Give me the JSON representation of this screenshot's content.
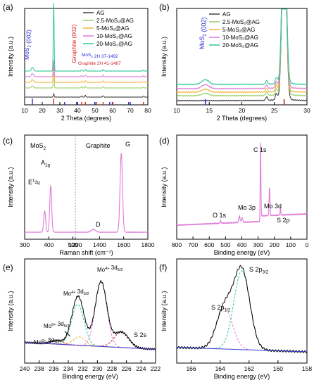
{
  "chart_data": [
    {
      "panel": "(a)",
      "type": "line",
      "xlabel": "2 Theta (degrees)",
      "ylabel": "Intensity (a.u.)",
      "xlim": [
        10,
        80
      ],
      "xticks": [
        10,
        20,
        30,
        40,
        50,
        60,
        70,
        80
      ],
      "series": [
        {
          "name": "AG",
          "color": "#404040"
        },
        {
          "name": "2.5-MoS₂@AG",
          "color": "#9ad06a"
        },
        {
          "name": "5-MoS₂@AG",
          "color": "#f2b53a"
        },
        {
          "name": "10-MoS₂@AG",
          "color": "#e07ad8"
        },
        {
          "name": "20-MoS₂@AG",
          "color": "#2ec99a"
        }
      ],
      "annotations": [
        {
          "text": "MoS₂ (002)",
          "color": "#2b2bd6"
        },
        {
          "text": "Graphite (002)",
          "color": "#d62020"
        },
        {
          "text": "MoS₂ 2H 37-1492",
          "color": "#2b2bd6"
        },
        {
          "text": "Graphite 2H 41-1487",
          "color": "#d62020"
        }
      ],
      "peaks_2theta": [
        14.4,
        26.5,
        42.4,
        44.5,
        54.6,
        77.5
      ],
      "reference_MoS2": [
        14.4,
        32.7,
        39.5,
        49.8,
        58.3,
        60.1,
        69.1
      ],
      "reference_graphite": [
        26.5,
        42.4,
        44.5,
        50.7,
        54.6,
        59.8,
        77.5
      ]
    },
    {
      "panel": "(b)",
      "type": "line",
      "xlabel": "2 Theta (degrees)",
      "ylabel": "Intensity (a.u.)",
      "xlim": [
        10,
        30
      ],
      "xticks": [
        10,
        15,
        20,
        25,
        30
      ],
      "series": [
        {
          "name": "AG",
          "color": "#404040"
        },
        {
          "name": "2.5-MoS₂@AG",
          "color": "#9ad06a"
        },
        {
          "name": "5-MoS₂@AG",
          "color": "#f2b53a"
        },
        {
          "name": "10-MoS₂@AG",
          "color": "#e07ad8"
        },
        {
          "name": "20-MoS₂@AG",
          "color": "#2ec99a"
        }
      ],
      "annotations": [
        {
          "text": "MoS₂ (002)",
          "color": "#2b2bd6"
        }
      ],
      "peaks_2theta": [
        14.4,
        23.8,
        25.3,
        26.5
      ]
    },
    {
      "panel": "(c)",
      "type": "line",
      "xlabel": "Raman shift (cm⁻¹)",
      "ylabel": "Intensity (a.u.)",
      "xticks": [
        300,
        400,
        500,
        1200,
        1400,
        1600,
        1800
      ],
      "color": "#e07ad8",
      "annotations": [
        "MoS₂",
        "Graphite",
        "A1g",
        "E¹2g",
        "D",
        "G"
      ],
      "peaks": [
        {
          "label": "E¹2g",
          "x": 383
        },
        {
          "label": "A1g",
          "x": 408
        },
        {
          "label": "D",
          "x": 1350
        },
        {
          "label": "G",
          "x": 1580
        }
      ]
    },
    {
      "panel": "(d)",
      "type": "line",
      "xlabel": "Binding energy (eV)",
      "ylabel": "Intensity (a.u.)",
      "xlim": [
        800,
        0
      ],
      "xticks": [
        800,
        700,
        600,
        500,
        400,
        300,
        200,
        100,
        0
      ],
      "color": "#e07ad8",
      "annotations": [
        "O 1s",
        "Mo 3p",
        "C 1s",
        "Mo 3d",
        "S 2p"
      ],
      "peaks": [
        {
          "label": "O 1s",
          "x": 531
        },
        {
          "label": "Mo 3p",
          "x": 400
        },
        {
          "label": "C 1s",
          "x": 285
        },
        {
          "label": "Mo 3d",
          "x": 230
        },
        {
          "label": "S 2p",
          "x": 163
        }
      ]
    },
    {
      "panel": "(e)",
      "type": "line",
      "xlabel": "Binding energy (eV)",
      "ylabel": "Intensity (a.u.)",
      "xlim": [
        240,
        222
      ],
      "xticks": [
        240,
        238,
        236,
        234,
        232,
        230,
        228,
        226,
        224,
        222
      ],
      "annotations": [
        "Mo⁶⁺ 3d3/2",
        "Mo⁶⁺ 3d5/2",
        "Mo⁴⁺ 3d3/2",
        "Mo⁴⁺ 3d5/2",
        "S 2s"
      ],
      "peaks": [
        {
          "label": "Mo⁶⁺ 3d3/2",
          "x": 235.6,
          "color": "#d62020"
        },
        {
          "label": "Mo⁶⁺ 3d5/2",
          "x": 232.5,
          "color": "#f2b53a"
        },
        {
          "label": "Mo⁴⁺ 3d3/2",
          "x": 232.7,
          "color": "#2ec99a"
        },
        {
          "label": "Mo⁴⁺ 3d5/2",
          "x": 229.5,
          "color": "#e07ad8"
        },
        {
          "label": "S 2s",
          "x": 226.7,
          "color": "#d62020"
        }
      ]
    },
    {
      "panel": "(f)",
      "type": "line",
      "xlabel": "Binding energy (eV)",
      "ylabel": "Intensity (a.u.)",
      "xlim": [
        167,
        158
      ],
      "xticks": [
        166,
        164,
        162,
        160,
        158
      ],
      "annotations": [
        "S 2p1/2",
        "S 2p3/2"
      ],
      "peaks": [
        {
          "label": "S 2p1/2",
          "x": 163.7,
          "color": "#e07ad8"
        },
        {
          "label": "S 2p3/2",
          "x": 162.5,
          "color": "#2ec99a"
        }
      ]
    }
  ]
}
